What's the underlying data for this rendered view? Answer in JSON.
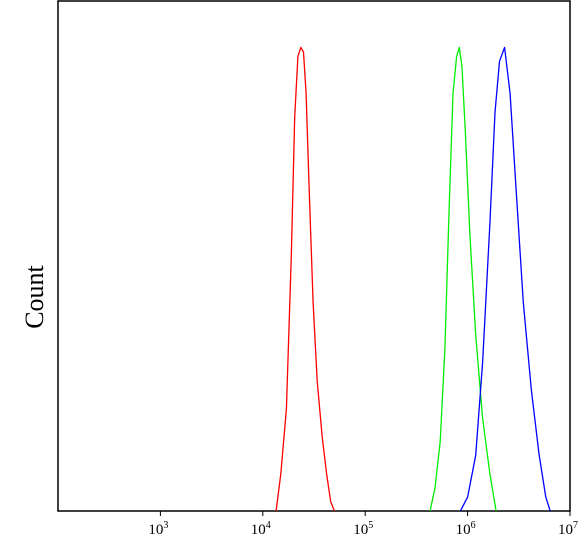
{
  "chart_data": {
    "type": "line",
    "title": "",
    "xlabel": "",
    "ylabel": "Count",
    "x_scale": "log",
    "xlim": [
      100,
      10000000
    ],
    "ylim": [
      0,
      1.1
    ],
    "x_ticks": [
      {
        "value": 1000,
        "base": "10",
        "exp": "3"
      },
      {
        "value": 10000,
        "base": "10",
        "exp": "4"
      },
      {
        "value": 100000,
        "base": "10",
        "exp": "5"
      },
      {
        "value": 1000000,
        "base": "10",
        "exp": "6"
      },
      {
        "value": 10000000,
        "base": "10",
        "exp": "7"
      }
    ],
    "grid": false,
    "legend": "none",
    "series": [
      {
        "color": "#ff0000",
        "x": [
          13500,
          15000,
          17000,
          19000,
          20500,
          22000,
          23500,
          25000,
          26500,
          28500,
          31000,
          34000,
          38000,
          42000,
          46000,
          50000
        ],
        "y": [
          0.0,
          0.08,
          0.22,
          0.55,
          0.85,
          0.98,
          1.0,
          0.99,
          0.9,
          0.68,
          0.45,
          0.28,
          0.16,
          0.08,
          0.02,
          0.0
        ]
      },
      {
        "color": "#00ee00",
        "x": [
          430000,
          480000,
          540000,
          600000,
          660000,
          720000,
          780000,
          830000,
          880000,
          950000,
          1050000,
          1200000,
          1400000,
          1650000,
          1900000
        ],
        "y": [
          0.0,
          0.05,
          0.15,
          0.35,
          0.65,
          0.9,
          0.98,
          1.0,
          0.96,
          0.82,
          0.6,
          0.38,
          0.2,
          0.08,
          0.0
        ]
      },
      {
        "color": "#0000ff",
        "x": [
          850000,
          1000000,
          1200000,
          1400000,
          1650000,
          1850000,
          2050000,
          2300000,
          2600000,
          3000000,
          3500000,
          4200000,
          5000000,
          5800000,
          6400000
        ],
        "y": [
          0.0,
          0.03,
          0.12,
          0.32,
          0.62,
          0.86,
          0.97,
          1.0,
          0.9,
          0.68,
          0.45,
          0.26,
          0.12,
          0.03,
          0.0
        ]
      }
    ]
  }
}
